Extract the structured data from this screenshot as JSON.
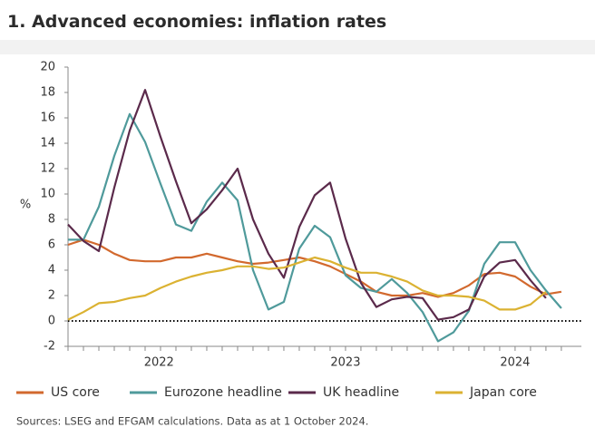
{
  "chart_data": {
    "type": "line",
    "title": "1. Advanced economies: inflation rates",
    "y_label": "%",
    "source": "Sources: LSEG and EFGAM calculations. Data as at 1 October 2024.",
    "categories": [
      null,
      null,
      null,
      null,
      null,
      null,
      null,
      null,
      null,
      null,
      null,
      null,
      null,
      null,
      null,
      null,
      null,
      null,
      null,
      null,
      null,
      null,
      null,
      null,
      null,
      null,
      null,
      null,
      null,
      null,
      null,
      null,
      null
    ],
    "xticks": [
      {
        "value": 5.9,
        "label": "2022"
      },
      {
        "value": 18,
        "label": "2023"
      },
      {
        "value": 29,
        "label": "2024"
      }
    ],
    "xlim": [
      0,
      33.3
    ],
    "ylim": [
      -2,
      20
    ],
    "yticks": [
      -2,
      0,
      2,
      4,
      6,
      8,
      10,
      12,
      14,
      16,
      18,
      20
    ],
    "series": [
      {
        "name": "US core",
        "color": "#d2692e",
        "values": [
          6.0,
          6.4,
          6.0,
          5.3,
          4.8,
          4.7,
          4.7,
          5.0,
          5.0,
          5.3,
          5.0,
          4.7,
          4.5,
          4.6,
          4.8,
          5.0,
          4.7,
          4.3,
          3.7,
          3.1,
          2.3,
          2.0,
          2.0,
          2.2,
          1.9,
          2.2,
          2.8,
          3.7,
          3.8,
          3.5,
          2.7,
          2.1,
          2.3
        ]
      },
      {
        "name": "Eurozone headline",
        "color": "#4f9a9b",
        "values": [
          6.4,
          6.4,
          9.0,
          13.0,
          16.3,
          14.1,
          10.8,
          7.6,
          7.1,
          9.4,
          10.9,
          9.5,
          4.0,
          0.9,
          1.5,
          5.7,
          7.5,
          6.6,
          3.6,
          2.6,
          2.3,
          3.3,
          2.2,
          0.7,
          -1.6,
          -0.9,
          0.8,
          4.5,
          6.2,
          6.2,
          4.0,
          2.4,
          1.0
        ]
      },
      {
        "name": "UK headline",
        "color": "#5b2a4b",
        "values": [
          7.6,
          6.3,
          5.5,
          10.5,
          15.0,
          18.2,
          14.5,
          11.0,
          7.7,
          8.8,
          10.3,
          12.0,
          8.0,
          5.3,
          3.4,
          7.4,
          9.9,
          10.9,
          6.5,
          3.0,
          1.1,
          1.7,
          1.9,
          1.8,
          0.1,
          0.3,
          0.9,
          3.5,
          4.6,
          4.8,
          3.2,
          1.8,
          null
        ]
      },
      {
        "name": "Japan core",
        "color": "#dbb232",
        "values": [
          0.1,
          0.7,
          1.4,
          1.5,
          1.8,
          2.0,
          2.6,
          3.1,
          3.5,
          3.8,
          4.0,
          4.3,
          4.3,
          4.1,
          4.2,
          4.6,
          5.0,
          4.7,
          4.2,
          3.8,
          3.8,
          3.5,
          3.1,
          2.4,
          2.0,
          2.0,
          1.9,
          1.6,
          0.9,
          0.9,
          1.3,
          2.3,
          null
        ]
      }
    ],
    "grid": false
  }
}
